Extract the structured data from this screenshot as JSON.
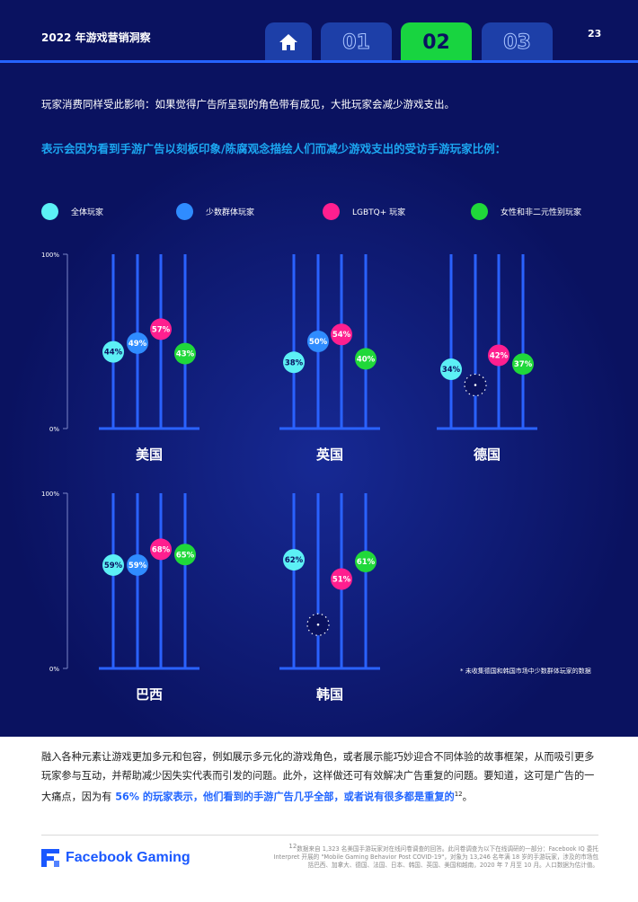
{
  "header": {
    "report_title": "2022 年游戏营销洞察",
    "page_number": "23",
    "tabs": [
      {
        "label": "",
        "icon": "home-icon"
      },
      {
        "label": "01"
      },
      {
        "label": "02",
        "active": true
      },
      {
        "label": "03"
      }
    ]
  },
  "intro": "玩家消费同样受此影响：如果觉得广告所呈现的角色带有成见，大批玩家会减少游戏支出。",
  "subtitle": "表示会因为看到手游广告以刻板印象/陈腐观念描绘人们而减少游戏支出的受访手游玩家比例：",
  "colors": {
    "background": "#0a1260",
    "bar_line": "#2a62ff",
    "series": [
      "#5cf0f5",
      "#2f8cff",
      "#ff1f8f",
      "#20d83a"
    ],
    "subtitle": "#1ca6f0",
    "highlight": "#2266ff"
  },
  "chart_data": {
    "type": "dot-column",
    "unit": "%",
    "ylim": [
      0,
      100
    ],
    "y_ticks": [
      "100%",
      "0%"
    ],
    "series": [
      {
        "name": "全体玩家"
      },
      {
        "name": "少数群体玩家"
      },
      {
        "name": "LGBTQ+ 玩家"
      },
      {
        "name": "女性和非二元性别玩家"
      }
    ],
    "groups": [
      {
        "country": "美国",
        "values": [
          44,
          49,
          57,
          43
        ]
      },
      {
        "country": "英国",
        "values": [
          38,
          50,
          54,
          40
        ]
      },
      {
        "country": "德国",
        "values": [
          34,
          null,
          42,
          37
        ]
      },
      {
        "country": "巴西",
        "values": [
          59,
          59,
          68,
          65
        ]
      },
      {
        "country": "韩国",
        "values": [
          62,
          null,
          51,
          61
        ]
      }
    ],
    "note": "* 未收集德国和韩国市场中少数群体玩家的数据"
  },
  "body": {
    "para_pre": "融入各种元素让游戏更加多元和包容，例如展示多元化的游戏角色，或者展示能巧妙迎合不同体验的故事框架，从而吸引更多玩家参与互动，并帮助减少因失实代表而引发的问题。此外，这样做还可有效解决广告重复的问题。要知道，这可是广告的一大痛点，因为有",
    "para_highlight": " 56% 的玩家表示，他们看到的手游广告几乎全部，或者说有很多都是重复的",
    "para_sup": "12",
    "para_post": "。"
  },
  "footer": {
    "brand": "Facebook Gaming",
    "source_sup": "12",
    "source": "数据来自 1,323 名美国手游玩家对在线问卷调查的回答。此问卷调查为以下在线调研的一部分：Facebook IQ 委托 Interpret 开展的 \"Mobile Gaming Behavior Post COVID-19\"，对象为 13,246 名年满 18 岁的手游玩家，涉及的市场包括巴西、加拿大、德国、法国、日本、韩国、英国、美国和越南，2020 年 7 月至 10 月。人口数据为估计值。"
  }
}
